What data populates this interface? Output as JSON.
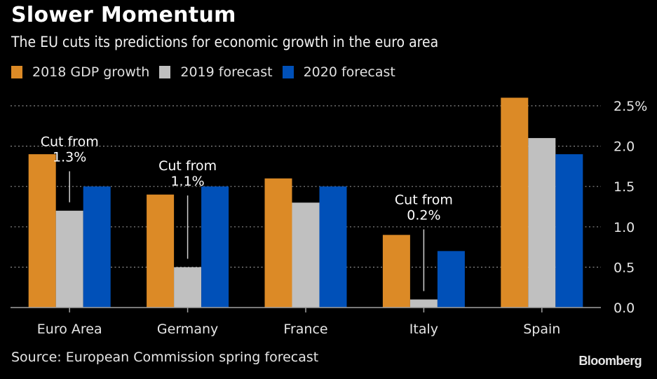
{
  "chart_data": {
    "type": "bar",
    "title": "Slower Momentum",
    "subtitle": "The EU cuts its predictions for economic growth in the euro area",
    "categories": [
      "Euro Area",
      "Germany",
      "France",
      "Italy",
      "Spain"
    ],
    "series": [
      {
        "name": "2018 GDP growth",
        "color": "#dc8a26",
        "values": [
          1.9,
          1.4,
          1.6,
          0.9,
          2.6
        ]
      },
      {
        "name": "2019 forecast",
        "color": "#c0c0c0",
        "values": [
          1.2,
          0.5,
          1.3,
          0.1,
          2.1
        ]
      },
      {
        "name": "2020 forecast",
        "color": "#0050b8",
        "values": [
          1.5,
          1.5,
          1.5,
          0.7,
          1.9
        ]
      }
    ],
    "xlabel": "",
    "ylabel": "",
    "ylim": [
      0,
      2.5
    ],
    "yticks": [
      "0.0",
      "0.5",
      "1.0",
      "1.5",
      "2.0",
      "2.5%"
    ],
    "grid": true,
    "legend_position": "top-left",
    "annotations": [
      {
        "category": "Euro Area",
        "line1": "Cut from",
        "line2": "1.3%"
      },
      {
        "category": "Germany",
        "line1": "Cut from",
        "line2": "1.1%"
      },
      {
        "category": "Italy",
        "line1": "Cut from",
        "line2": "0.2%"
      }
    ],
    "source": "Source: European Commission spring forecast",
    "brand": "Bloomberg"
  }
}
